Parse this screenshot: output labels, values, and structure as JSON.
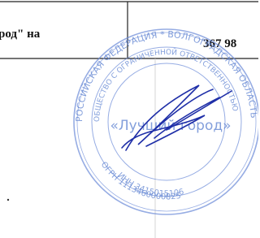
{
  "table": {
    "rows": [
      [
        "род\" на",
        "367 98"
      ]
    ]
  },
  "stamp": {
    "outer_text": "РОССИЙСКАЯ ФЕДЕРАЦИЯ * ВОЛГОГРАДСКАЯ ОБЛАСТЬ * ГОРОД ВОЛЖСКИЙ",
    "inner_text": "ОБЩЕСТВО С ОГРАНИЧЕННОЙ ОТВЕТСТВЕННОСТЬЮ",
    "center": "«Лучший город»",
    "ogrn": "ОГРН 1113460000825",
    "inn": "ИНН 3415015106"
  }
}
